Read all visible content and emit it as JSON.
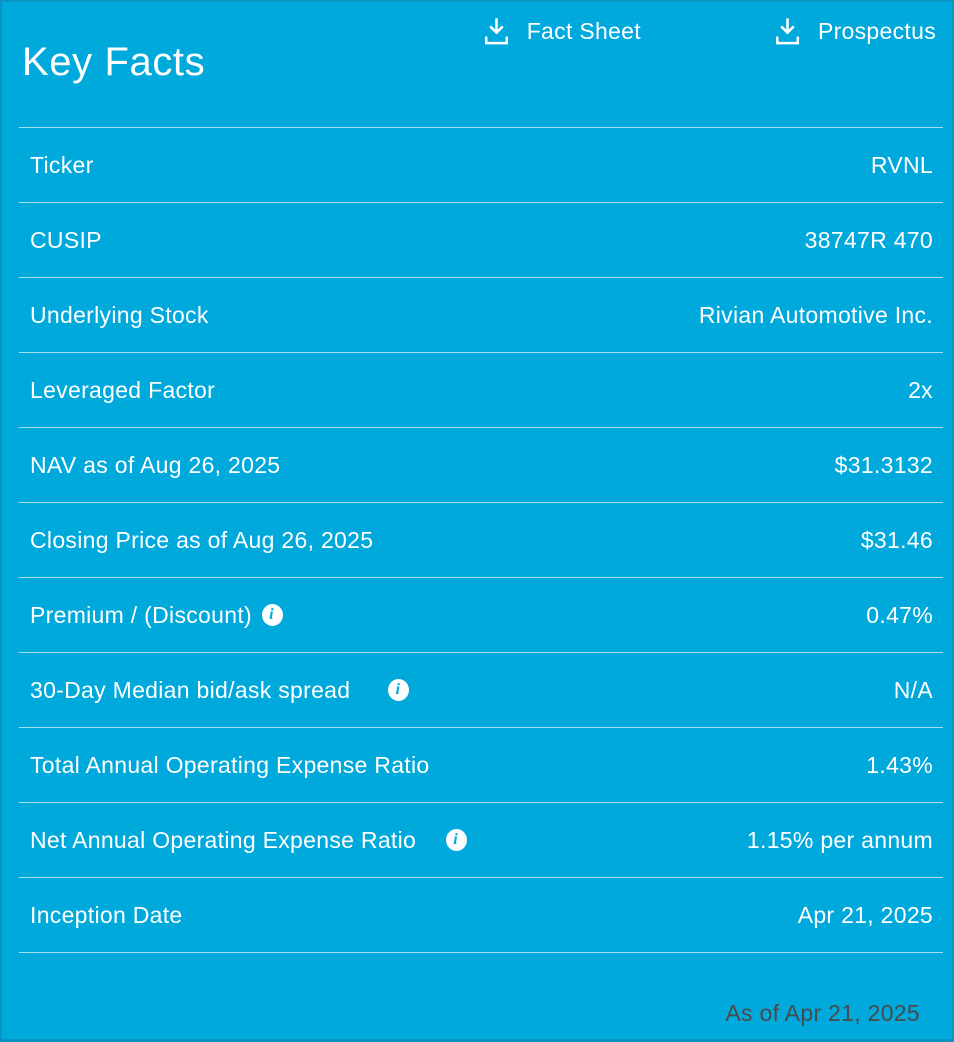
{
  "theme": {
    "background": "#00A9DC",
    "edge": "#0b93c1",
    "text": "#ffffff",
    "divider": "rgba(255,255,255,0.65)",
    "footer_text": "#4a4a4a"
  },
  "header": {
    "title": "Key Facts",
    "links": [
      {
        "label": "Fact Sheet",
        "icon": "download-icon"
      },
      {
        "label": "Prospectus",
        "icon": "download-icon"
      }
    ]
  },
  "facts": [
    {
      "label": "Ticker",
      "value": "RVNL",
      "info": false
    },
    {
      "label": "CUSIP",
      "value": "38747R 470",
      "info": false
    },
    {
      "label": "Underlying Stock",
      "value": "Rivian Automotive Inc.",
      "info": false
    },
    {
      "label": "Leveraged Factor",
      "value": "2x",
      "info": false
    },
    {
      "label": "NAV as of Aug 26, 2025",
      "value": "$31.3132",
      "info": false
    },
    {
      "label": "Closing Price as of Aug 26, 2025",
      "value": "$31.46",
      "info": false
    },
    {
      "label": "Premium / (Discount)",
      "value": "0.47%",
      "info": true
    },
    {
      "label": "30-Day Median bid/ask spread",
      "value": "N/A",
      "info": true
    },
    {
      "label": "Total Annual Operating Expense Ratio",
      "value": "1.43%",
      "info": false
    },
    {
      "label": "Net Annual Operating Expense Ratio",
      "value": "1.15% per annum",
      "info": true
    },
    {
      "label": "Inception Date",
      "value": "Apr 21, 2025",
      "info": false
    }
  ],
  "footer": {
    "as_of": "As of Apr 21, 2025"
  }
}
